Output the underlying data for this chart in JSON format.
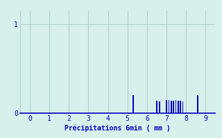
{
  "title": "",
  "xlabel": "Précipitations 6min ( mm )",
  "ylabel": "",
  "xlim": [
    -0.5,
    9.5
  ],
  "ylim": [
    0,
    1.15
  ],
  "yticks": [
    0,
    1
  ],
  "xticks": [
    0,
    1,
    2,
    3,
    4,
    5,
    6,
    7,
    8,
    9
  ],
  "background_color": "#d8f0ec",
  "bar_color": "#0000bb",
  "grid_color": "#b0d0cc",
  "bar_positions": [
    5.3,
    6.5,
    6.65,
    7.0,
    7.12,
    7.24,
    7.36,
    7.48,
    7.6,
    7.72,
    7.84,
    8.6
  ],
  "bar_heights": [
    0.2,
    0.14,
    0.13,
    0.15,
    0.15,
    0.14,
    0.14,
    0.15,
    0.14,
    0.14,
    0.13,
    0.2
  ],
  "bar_width": 0.06
}
